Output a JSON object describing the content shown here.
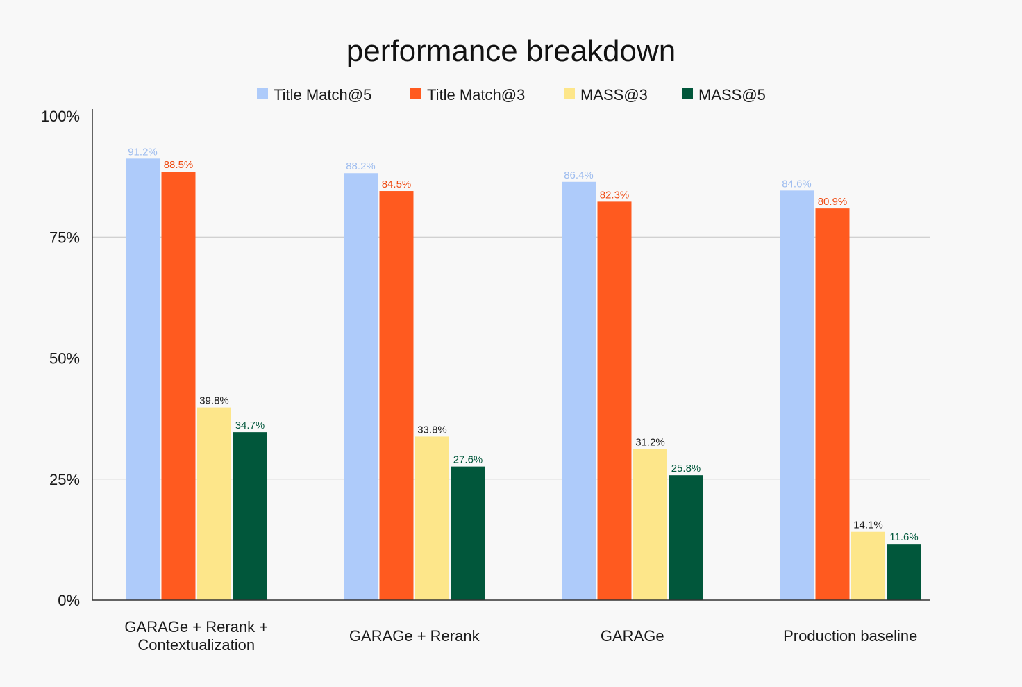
{
  "chart_data": {
    "type": "bar",
    "title": "performance breakdown",
    "categories": [
      [
        "GARAGe + Rerank +",
        "Contextualization"
      ],
      [
        "GARAGe + Rerank"
      ],
      [
        "GARAGe"
      ],
      [
        "Production baseline"
      ]
    ],
    "series": [
      {
        "name": "Title Match@5",
        "color": "#aecbfa",
        "label_color": "#9dbcef",
        "values": [
          91.2,
          88.2,
          86.4,
          84.6
        ],
        "labels": [
          "91.2%",
          "88.2%",
          "86.4%",
          "84.6%"
        ]
      },
      {
        "name": "Title Match@3",
        "color": "#ff5a1f",
        "label_color": "#ef4c14",
        "values": [
          88.5,
          84.5,
          82.3,
          80.9
        ],
        "labels": [
          "88.5%",
          "84.5%",
          "82.3%",
          "80.9%"
        ]
      },
      {
        "name": "MASS@3",
        "color": "#fde68a",
        "label_color": "#1a1a1a",
        "values": [
          39.8,
          33.8,
          31.2,
          14.1
        ],
        "labels": [
          "39.8%",
          "33.8%",
          "31.2%",
          "14.1%"
        ]
      },
      {
        "name": "MASS@5",
        "color": "#01573b",
        "label_color": "#01573b",
        "values": [
          34.7,
          27.6,
          25.8,
          11.6
        ],
        "labels": [
          "34.7%",
          "27.6%",
          "25.8%",
          "11.6%"
        ]
      }
    ],
    "ylim": [
      0,
      100
    ],
    "yticks": [
      0,
      25,
      50,
      75,
      100
    ],
    "ytick_labels": [
      "0%",
      "25%",
      "50%",
      "75%",
      "100%"
    ],
    "xlabel": "",
    "ylabel": "",
    "grid": true,
    "legend_position": "top-center"
  }
}
